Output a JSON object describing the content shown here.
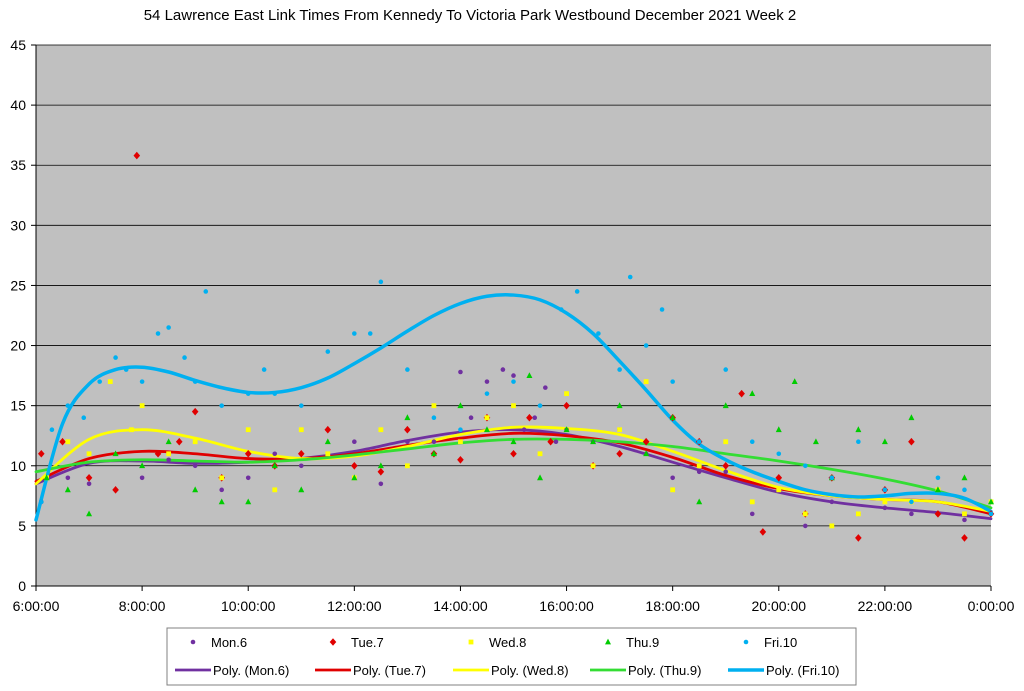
{
  "chart_data": {
    "type": "scatter",
    "title": "54 Lawrence East Link Times From Kennedy To Victoria Park Westbound December 2021  Week 2",
    "xlabel": "",
    "ylabel": "",
    "ylim": [
      0,
      45
    ],
    "yticks": [
      "0",
      "5",
      "10",
      "15",
      "20",
      "25",
      "30",
      "35",
      "40",
      "45"
    ],
    "xlim": [
      6,
      24
    ],
    "xticks": [
      "6:00:00",
      "8:00:00",
      "10:00:00",
      "12:00:00",
      "14:00:00",
      "16:00:00",
      "18:00:00",
      "20:00:00",
      "22:00:00",
      "0:00:00"
    ],
    "grid": true,
    "plot_background": "#c0c0c0",
    "legend_position": "bottom",
    "series": [
      {
        "name": "Mon.6",
        "marker": "circle",
        "color": "#7030a0",
        "x": [
          6.1,
          6.6,
          7.0,
          7.5,
          8.0,
          8.5,
          9.0,
          9.5,
          10.0,
          10.5,
          11.0,
          11.5,
          12.0,
          12.5,
          13.0,
          13.5,
          14.0,
          14.2,
          14.5,
          14.8,
          15.0,
          15.2,
          15.4,
          15.6,
          15.8,
          16.0,
          16.5,
          17.0,
          17.5,
          18.0,
          18.5,
          19.0,
          19.5,
          20.0,
          20.5,
          21.0,
          21.5,
          22.0,
          22.5,
          23.0,
          23.5
        ],
        "y": [
          7,
          9,
          8.5,
          8,
          9,
          10.5,
          10,
          8,
          9,
          11,
          10,
          11,
          12,
          8.5,
          12,
          12,
          17.8,
          14,
          17,
          18,
          17.5,
          13,
          14,
          16.5,
          12,
          13,
          12,
          13,
          11,
          9,
          9.5,
          9.5,
          6,
          8,
          5,
          7,
          6,
          6.5,
          6,
          6,
          5.5
        ]
      },
      {
        "name": "Tue.7",
        "marker": "diamond",
        "color": "#e00000",
        "x": [
          6.1,
          6.5,
          7.0,
          7.5,
          7.9,
          8.3,
          8.7,
          9.0,
          9.5,
          10.0,
          10.5,
          11.0,
          11.5,
          12.0,
          12.5,
          13.0,
          13.5,
          14.0,
          14.5,
          15.0,
          15.3,
          15.7,
          16.0,
          16.5,
          17.0,
          17.5,
          18.0,
          18.5,
          19.0,
          19.3,
          19.7,
          20.0,
          20.5,
          21.0,
          21.5,
          22.0,
          22.5,
          23.0,
          23.5,
          24.0
        ],
        "y": [
          11,
          12,
          9,
          8,
          35.8,
          11,
          12,
          14.5,
          9,
          11,
          10,
          11,
          13,
          10,
          9.5,
          13,
          11,
          10.5,
          14,
          11,
          14,
          12,
          15,
          10,
          11,
          12,
          14,
          12,
          10,
          16,
          4.5,
          9,
          6,
          9,
          4,
          8,
          12,
          6,
          4,
          6
        ]
      },
      {
        "name": "Wed.8",
        "marker": "square",
        "color": "#ffff00",
        "x": [
          6.2,
          6.6,
          7.0,
          7.4,
          7.8,
          8.0,
          8.5,
          9.0,
          9.5,
          10.0,
          10.5,
          11.0,
          11.5,
          12.0,
          12.5,
          13.0,
          13.5,
          14.0,
          14.5,
          15.0,
          15.5,
          16.0,
          16.5,
          17.0,
          17.5,
          18.0,
          18.5,
          19.0,
          19.5,
          20.0,
          20.5,
          21.0,
          21.5,
          22.0,
          22.5,
          23.0,
          23.5,
          24.0
        ],
        "y": [
          9,
          12,
          11,
          17,
          13,
          15,
          11,
          12,
          9,
          13,
          8,
          13,
          11,
          9,
          13,
          10,
          15,
          12,
          14,
          15,
          11,
          16,
          10,
          13,
          17,
          8,
          10,
          12,
          7,
          8,
          6,
          5,
          6,
          7,
          7,
          8,
          6,
          7
        ]
      },
      {
        "name": "Thu.9",
        "marker": "triangle",
        "color": "#00cc00",
        "x": [
          6.2,
          6.6,
          7.0,
          7.5,
          8.0,
          8.5,
          9.0,
          9.5,
          10.0,
          10.5,
          11.0,
          11.5,
          12.0,
          12.5,
          13.0,
          13.5,
          14.0,
          14.5,
          15.0,
          15.3,
          15.5,
          16.0,
          16.5,
          17.0,
          17.5,
          18.0,
          18.5,
          19.0,
          19.5,
          20.0,
          20.3,
          20.7,
          21.0,
          21.5,
          22.0,
          22.5,
          23.0,
          23.5,
          24.0
        ],
        "y": [
          9,
          8,
          6,
          11,
          10,
          12,
          8,
          7,
          7,
          10,
          8,
          12,
          9,
          10,
          14,
          11,
          15,
          13,
          12,
          17.5,
          9,
          13,
          12,
          15,
          11,
          14,
          7,
          15,
          16,
          13,
          17,
          12,
          9,
          13,
          12,
          14,
          8,
          9,
          7
        ]
      },
      {
        "name": "Fri.10",
        "marker": "circle",
        "color": "#00b0f0",
        "x": [
          6.1,
          6.3,
          6.6,
          6.9,
          7.2,
          7.5,
          7.7,
          8.0,
          8.3,
          8.5,
          8.8,
          9.0,
          9.2,
          9.5,
          10.0,
          10.3,
          10.5,
          11.0,
          11.5,
          12.0,
          12.3,
          12.5,
          13.0,
          13.5,
          14.0,
          14.5,
          15.0,
          15.5,
          15.9,
          16.2,
          16.6,
          17.0,
          17.2,
          17.5,
          17.8,
          18.0,
          18.5,
          19.0,
          19.5,
          20.0,
          20.5,
          21.0,
          21.5,
          22.0,
          22.5,
          23.0,
          23.5,
          24.0
        ],
        "y": [
          7,
          13,
          15,
          14,
          17,
          19,
          18,
          17,
          21,
          21.5,
          19,
          17,
          24.5,
          15,
          16,
          18,
          16,
          15,
          19.5,
          21,
          21,
          25.3,
          18,
          14,
          13,
          16,
          17,
          15,
          23,
          24.5,
          21,
          18,
          25.7,
          20,
          23,
          17,
          12,
          18,
          12,
          11,
          10,
          9,
          12,
          8,
          7,
          9,
          8,
          6
        ]
      }
    ],
    "trendlines": [
      {
        "name": "Poly. (Mon.6)",
        "color": "#7030a0",
        "x": [
          6,
          7,
          8,
          9,
          10,
          11,
          12,
          13,
          14,
          15,
          16,
          17,
          18,
          19,
          20,
          21,
          22,
          23,
          24
        ],
        "y": [
          8.5,
          10.2,
          10.4,
          10.2,
          10.3,
          10.6,
          11.2,
          12.1,
          12.8,
          13.0,
          12.6,
          11.6,
          10.3,
          9.0,
          7.8,
          7.0,
          6.5,
          6.1,
          5.6
        ]
      },
      {
        "name": "Poly. (Tue.7)",
        "color": "#e00000",
        "x": [
          6,
          7,
          8,
          9,
          10,
          11,
          12,
          13,
          14,
          15,
          16,
          17,
          18,
          19,
          20,
          21,
          22,
          23,
          24
        ],
        "y": [
          8.7,
          10.6,
          11.2,
          11.0,
          10.6,
          10.6,
          11.0,
          11.7,
          12.3,
          12.7,
          12.5,
          11.9,
          10.7,
          9.2,
          8.1,
          7.5,
          7.2,
          7.0,
          6.0
        ]
      },
      {
        "name": "Poly. (Wed.8)",
        "color": "#ffff00",
        "x": [
          6,
          7,
          8,
          9,
          10,
          11,
          12,
          13,
          14,
          15,
          16,
          17,
          18,
          19,
          20,
          21,
          22,
          23,
          24
        ],
        "y": [
          8.5,
          12.2,
          13.0,
          12.3,
          11.2,
          10.6,
          10.8,
          11.6,
          12.6,
          13.2,
          13.1,
          12.6,
          11.2,
          9.6,
          8.2,
          7.5,
          7.2,
          7.0,
          6.2
        ]
      },
      {
        "name": "Poly. (Thu.9)",
        "color": "#33dd33",
        "x": [
          6,
          7,
          8,
          9,
          10,
          11,
          12,
          13,
          14,
          15,
          16,
          17,
          18,
          19,
          20,
          21,
          22,
          23,
          24
        ],
        "y": [
          9.5,
          10.3,
          10.5,
          10.4,
          10.3,
          10.5,
          10.9,
          11.4,
          11.9,
          12.2,
          12.2,
          12.0,
          11.6,
          11.0,
          10.4,
          9.7,
          8.9,
          7.9,
          6.5
        ]
      },
      {
        "name": "Poly. (Fri.10)",
        "color": "#00b0f0",
        "x": [
          6,
          6.5,
          7,
          7.5,
          8,
          8.5,
          9,
          9.5,
          10,
          10.5,
          11,
          11.5,
          12,
          12.5,
          13,
          13.5,
          14,
          14.5,
          15,
          15.5,
          16,
          16.5,
          17,
          17.5,
          18,
          18.5,
          19,
          19.5,
          20,
          20.5,
          21,
          21.5,
          22,
          22.5,
          23,
          23.5,
          24
        ],
        "y": [
          5.5,
          13.5,
          16.8,
          18.0,
          18.2,
          17.8,
          17.1,
          16.5,
          16.1,
          16.1,
          16.5,
          17.3,
          18.5,
          19.8,
          21.2,
          22.5,
          23.5,
          24.1,
          24.2,
          23.8,
          22.7,
          21.0,
          18.7,
          16.3,
          13.8,
          11.8,
          10.5,
          9.5,
          8.7,
          8.0,
          7.6,
          7.4,
          7.5,
          7.7,
          7.7,
          7.3,
          6.2
        ]
      }
    ]
  }
}
